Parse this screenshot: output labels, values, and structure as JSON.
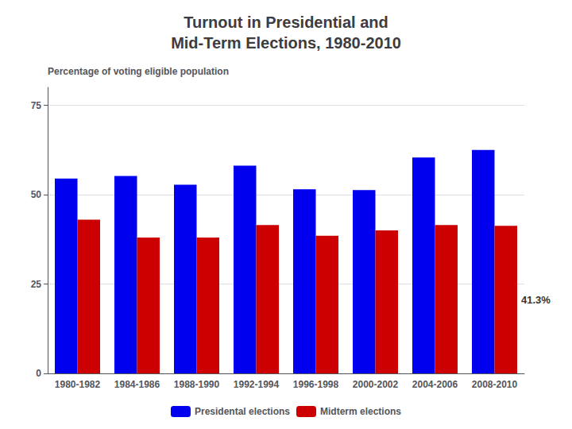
{
  "chart_data": {
    "type": "bar",
    "title": "Turnout in Presidential and\nMid-Term Elections, 1980-2010",
    "ylabel": "Percentage of voting eligible population",
    "categories": [
      "1980-1982",
      "1984-1986",
      "1988-1990",
      "1992-1994",
      "1996-1998",
      "2000-2002",
      "2004-2006",
      "2008-2010"
    ],
    "series": [
      {
        "name": "Presidental elections",
        "color": "#0000EE",
        "values": [
          54.5,
          55.2,
          52.8,
          58.1,
          51.5,
          51.3,
          60.4,
          62.5
        ]
      },
      {
        "name": "Midterm elections",
        "color": "#CC0000",
        "values": [
          43.0,
          38.0,
          38.0,
          41.5,
          38.5,
          40.0,
          41.5,
          41.3
        ]
      }
    ],
    "annotations": [
      {
        "text": "41.3%",
        "series": "Midterm elections",
        "category": "2008-2010"
      }
    ],
    "ylim": [
      0,
      80
    ],
    "yticks": [
      0,
      25,
      50,
      75
    ],
    "grid": true,
    "legend": "bottom"
  }
}
